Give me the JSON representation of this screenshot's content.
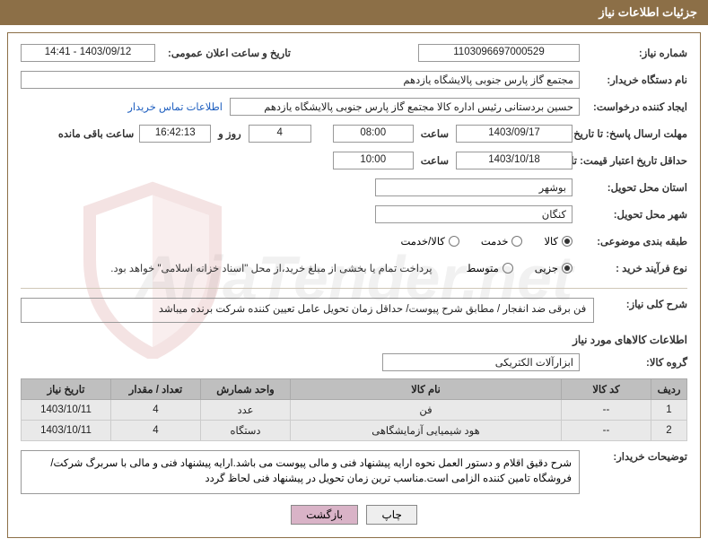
{
  "header_title": "جزئیات اطلاعات نیاز",
  "watermark_text": "AriaTender.net",
  "labels": {
    "need_no": "شماره نیاز:",
    "announce_dt": "تاریخ و ساعت اعلان عمومی:",
    "buyer_org": "نام دستگاه خریدار:",
    "requester": "ایجاد کننده درخواست:",
    "contact_link": "اطلاعات تماس خریدار",
    "response_deadline": "مهلت ارسال پاسخ: تا تاریخ:",
    "hour": "ساعت",
    "days_and": "روز و",
    "remaining": "ساعت باقی مانده",
    "price_validity": "حداقل تاریخ اعتبار قیمت: تا",
    "delivery_province": "استان محل تحویل:",
    "delivery_city": "شهر محل تحویل:",
    "subject_class": "طبقه بندی موضوعی:",
    "purchase_type": "نوع فرآیند خرید :",
    "general_desc": "شرح کلی نیاز:",
    "goods_info_title": "اطلاعات کالاهای مورد نیاز",
    "goods_group": "گروه کالا:",
    "buyer_notes_label": "توضیحات خریدار:",
    "print": "چاپ",
    "back": "بازگشت",
    "payment_note": "پرداخت تمام یا بخشی از مبلغ خرید،از محل \"اسناد خزانه اسلامی\" خواهد بود."
  },
  "values": {
    "need_no": "1103096697000529",
    "announce_dt": "1403/09/12 - 14:41",
    "buyer_org": "مجتمع گاز پارس جنوبی  پالایشگاه یازدهم",
    "requester": "حسین بردستانی رئیس اداره کالا مجتمع گاز پارس جنوبی  پالایشگاه یازدهم",
    "resp_date": "1403/09/17",
    "resp_time": "08:00",
    "remain_days": "4",
    "remain_time": "16:42:13",
    "price_date": "1403/10/18",
    "price_time": "10:00",
    "province": "بوشهر",
    "city": "کنگان",
    "general_desc": "فن برقی ضد انفجار / مطابق شرح پیوست/ حداقل زمان تحویل عامل تعیین کننده شرکت برنده میباشد",
    "goods_group": "ابزارآلات الکتریکی",
    "buyer_notes": "شرح دقیق اقلام و دستور العمل نحوه ارایه پیشنهاد فنی و مالی پیوست می باشد.ارایه پیشنهاد فنی و مالی با سربرگ شرکت/فروشگاه تامین کننده الزامی است.مناسب ترین زمان تحویل در پیشنهاد فنی لحاظ گردد"
  },
  "radios": {
    "subject": [
      "کالا",
      "خدمت",
      "کالا/خدمت"
    ],
    "subject_selected": 0,
    "purchase": [
      "جزیی",
      "متوسط"
    ],
    "purchase_selected": 0
  },
  "table": {
    "headers": [
      "ردیف",
      "کد کالا",
      "نام کالا",
      "واحد شمارش",
      "تعداد / مقدار",
      "تاریخ نیاز"
    ],
    "rows": [
      [
        "1",
        "--",
        "فن",
        "عدد",
        "4",
        "1403/10/11"
      ],
      [
        "2",
        "--",
        "هود شیمیایی آزمایشگاهی",
        "دستگاه",
        "4",
        "1403/10/11"
      ]
    ]
  },
  "colors": {
    "header_bg": "#8c6f47",
    "border": "#8c6f47",
    "th_bg": "#bfbfbf",
    "td_bg": "#e9e9e9"
  }
}
